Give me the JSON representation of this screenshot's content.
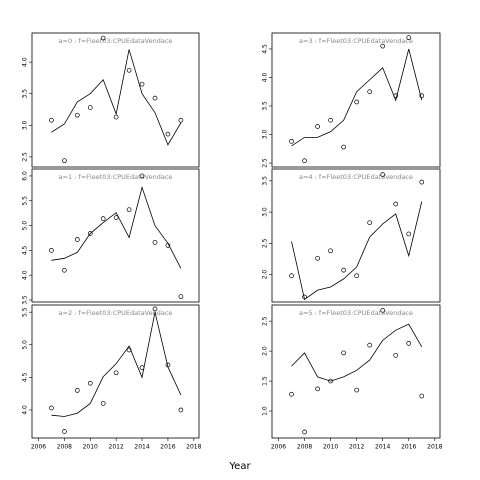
{
  "xlabel": "Year",
  "chart_data": [
    {
      "type": "line",
      "title": "a=0 : f=Fleet03:CPUEdataVendace",
      "x": [
        2007,
        2008,
        2009,
        2010,
        2011,
        2012,
        2013,
        2014,
        2015,
        2016,
        2017
      ],
      "series": [
        {
          "mode": "markers",
          "color": "#000000",
          "values": [
            3.08,
            2.44,
            3.16,
            3.28,
            4.38,
            3.13,
            3.87,
            3.65,
            3.43,
            2.86,
            3.08
          ]
        },
        {
          "mode": "lines",
          "color": "#000000",
          "values": [
            2.89,
            3.02,
            3.37,
            3.5,
            3.72,
            3.18,
            4.2,
            3.5,
            3.2,
            2.69,
            3.04
          ]
        }
      ],
      "xlim": [
        2005.5,
        2018.4
      ],
      "ylim": [
        2.34,
        4.46
      ],
      "yticks": [
        2.5,
        {
          "value": 3,
          "label": "3.0"
        },
        3.5,
        {
          "value": 4,
          "label": "4.0"
        }
      ]
    },
    {
      "type": "line",
      "title": "a=1 : f=Fleet03:CPUEdataVendace",
      "x": [
        2007,
        2008,
        2009,
        2010,
        2011,
        2012,
        2013,
        2014,
        2015,
        2016,
        2017
      ],
      "series": [
        {
          "mode": "markers",
          "color": "#000000",
          "values": [
            4.5,
            4.1,
            4.72,
            4.84,
            5.14,
            5.16,
            5.32,
            6.0,
            4.66,
            4.6,
            3.57
          ]
        },
        {
          "mode": "lines",
          "color": "#000000",
          "values": [
            4.3,
            4.34,
            4.46,
            4.84,
            5.06,
            5.26,
            4.76,
            5.77,
            5.0,
            4.64,
            4.14
          ]
        }
      ],
      "xlim": [
        2005.5,
        2018.4
      ],
      "ylim": [
        3.46,
        6.14
      ],
      "yticks": [
        3.5,
        {
          "value": 4,
          "label": "4.0"
        },
        4.5,
        {
          "value": 5,
          "label": "5.0"
        },
        5.5,
        {
          "value": 6,
          "label": "6.0"
        }
      ]
    },
    {
      "type": "line",
      "title": "a=2 : f=Fleet03:CPUEdataVendace",
      "x": [
        2007,
        2008,
        2009,
        2010,
        2011,
        2012,
        2013,
        2014,
        2015,
        2016,
        2017
      ],
      "series": [
        {
          "mode": "markers",
          "color": "#000000",
          "values": [
            4.03,
            3.67,
            4.3,
            4.41,
            4.1,
            4.57,
            4.92,
            4.65,
            5.55,
            4.69,
            4.0
          ]
        },
        {
          "mode": "lines",
          "color": "#000000",
          "values": [
            3.92,
            3.9,
            3.95,
            4.1,
            4.51,
            4.71,
            4.98,
            4.5,
            5.5,
            4.66,
            4.23
          ]
        }
      ],
      "xlim": [
        2005.5,
        2018.4
      ],
      "ylim": [
        3.57,
        5.61
      ],
      "xticks": [
        2006,
        2008,
        2010,
        2012,
        2014,
        2016,
        2018
      ],
      "yticks": [
        {
          "value": 4,
          "label": "4.0"
        },
        4.5,
        {
          "value": 5,
          "label": "5.0"
        },
        5.5
      ]
    },
    {
      "type": "line",
      "title": "a=3 : f=Fleet03:CPUEdataVendace",
      "x": [
        2007,
        2008,
        2009,
        2010,
        2011,
        2012,
        2013,
        2014,
        2015,
        2016,
        2017
      ],
      "series": [
        {
          "mode": "markers",
          "color": "#000000",
          "values": [
            2.88,
            2.54,
            3.14,
            3.25,
            2.78,
            3.57,
            3.75,
            4.55,
            3.68,
            4.7,
            3.68
          ]
        },
        {
          "mode": "lines",
          "color": "#000000",
          "values": [
            2.8,
            2.95,
            2.95,
            3.05,
            3.25,
            3.75,
            3.96,
            4.17,
            3.6,
            4.5,
            3.6
          ]
        }
      ],
      "xlim": [
        2005.5,
        2018.4
      ],
      "ylim": [
        2.43,
        4.78
      ],
      "yticks": [
        2.5,
        {
          "value": 3,
          "label": "3.0"
        },
        3.5,
        {
          "value": 4,
          "label": "4.0"
        },
        4.5
      ]
    },
    {
      "type": "line",
      "title": "a=4 : f=Fleet03:CPUEdataVendace",
      "x": [
        2007,
        2008,
        2009,
        2010,
        2011,
        2012,
        2013,
        2014,
        2015,
        2016,
        2017
      ],
      "series": [
        {
          "mode": "markers",
          "color": "#000000",
          "values": [
            1.98,
            1.64,
            2.26,
            2.38,
            2.07,
            1.98,
            2.83,
            3.6,
            3.13,
            2.65,
            3.48
          ]
        },
        {
          "mode": "lines",
          "color": "#000000",
          "values": [
            2.53,
            1.6,
            1.75,
            1.8,
            1.93,
            2.12,
            2.6,
            2.81,
            2.97,
            2.3,
            3.17
          ]
        }
      ],
      "xlim": [
        2005.5,
        2018.4
      ],
      "ylim": [
        1.56,
        3.69
      ],
      "yticks": [
        {
          "value": 2,
          "label": "2.0"
        },
        2.5,
        {
          "value": 3,
          "label": "3.0"
        },
        3.5
      ]
    },
    {
      "type": "line",
      "title": "a=5 : f=Fleet03:CPUEdataVendace",
      "x": [
        2007,
        2008,
        2009,
        2010,
        2011,
        2012,
        2013,
        2014,
        2015,
        2016,
        2017
      ],
      "series": [
        {
          "mode": "markers",
          "color": "#000000",
          "values": [
            1.28,
            0.65,
            1.37,
            1.5,
            1.97,
            1.35,
            2.1,
            2.68,
            1.93,
            2.13,
            1.25
          ]
        },
        {
          "mode": "lines",
          "color": "#000000",
          "values": [
            1.75,
            1.97,
            1.57,
            1.5,
            1.57,
            1.68,
            1.85,
            2.18,
            2.35,
            2.45,
            2.07
          ]
        }
      ],
      "xlim": [
        2005.5,
        2018.4
      ],
      "ylim": [
        0.55,
        2.77
      ],
      "xticks": [
        2006,
        2008,
        2010,
        2012,
        2014,
        2016,
        2018
      ],
      "yticks": [
        {
          "value": 1,
          "label": "1.0"
        },
        1.5,
        {
          "value": 2,
          "label": "2.0"
        },
        2.5
      ]
    }
  ]
}
